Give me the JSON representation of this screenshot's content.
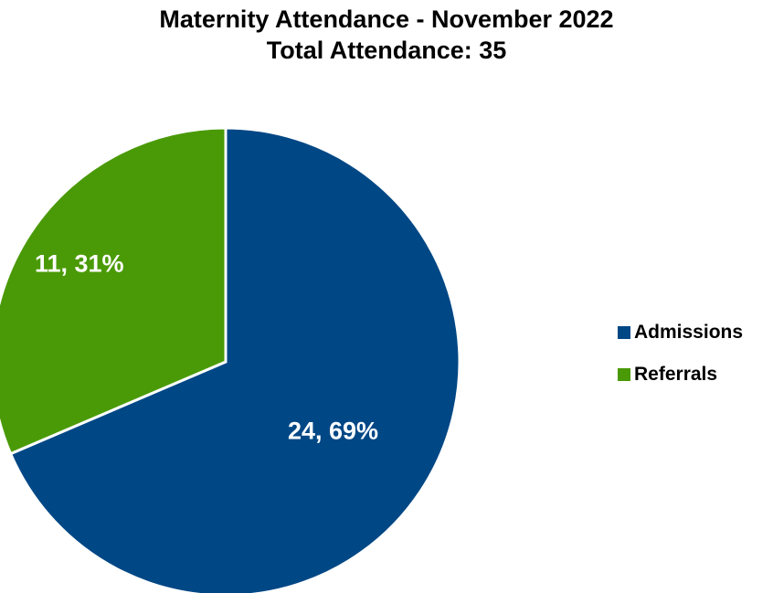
{
  "chart_data": {
    "type": "pie",
    "title": "Maternity Attendance - November 2022",
    "subtitle": "Total Attendance: 35",
    "slices": [
      {
        "label": "Admissions",
        "value": 24,
        "percent": 69,
        "data_label": "24, 69%",
        "color": "#004785"
      },
      {
        "label": "Referrals",
        "value": 11,
        "percent": 31,
        "data_label": "11, 31%",
        "color": "#4A9A07"
      }
    ],
    "legend_position": "right",
    "label_color": "#FFFFFF"
  }
}
